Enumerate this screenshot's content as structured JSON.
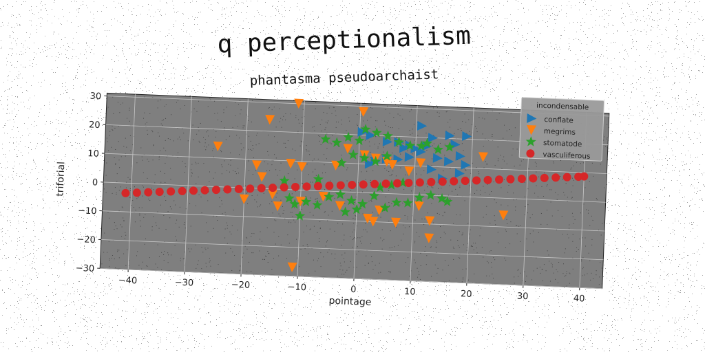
{
  "title": "q perceptionalism",
  "subtitle": "phantasma pseudoarchaist",
  "chart_data": {
    "type": "scatter",
    "title": "phantasma pseudoarchaist",
    "xlabel": "pointage",
    "ylabel": "triforial",
    "xlim": [
      -45,
      44
    ],
    "ylim": [
      -30,
      31
    ],
    "xticks": [
      -40,
      -30,
      -20,
      -10,
      0,
      10,
      20,
      30,
      40
    ],
    "yticks": [
      -30,
      -20,
      -10,
      0,
      10,
      20,
      30
    ],
    "grid": true,
    "legend": {
      "title": "incondensable",
      "position": "top-right"
    },
    "series": [
      {
        "name": "conflate",
        "marker": "triangle-right",
        "color": "#1f77b4",
        "points": [
          [
            0.5,
            21
          ],
          [
            2,
            20
          ],
          [
            5,
            18
          ],
          [
            7,
            18
          ],
          [
            9,
            17
          ],
          [
            11,
            24
          ],
          [
            13,
            20
          ],
          [
            16,
            21
          ],
          [
            19,
            21
          ],
          [
            12,
            17
          ],
          [
            17,
            18
          ],
          [
            18,
            14
          ],
          [
            3,
            11
          ],
          [
            5,
            12
          ],
          [
            9,
            13
          ],
          [
            11,
            15
          ],
          [
            14,
            13
          ],
          [
            16,
            12
          ],
          [
            19,
            11
          ],
          [
            8,
            16
          ],
          [
            2,
            10
          ],
          [
            7,
            12
          ],
          [
            13,
            9
          ],
          [
            15,
            6
          ],
          [
            18,
            8
          ],
          [
            10,
            16
          ]
        ]
      },
      {
        "name": "megrims",
        "marker": "triangle-down",
        "color": "#ff7f0e",
        "points": [
          [
            -11,
            30
          ],
          [
            0.5,
            28
          ],
          [
            -16,
            24
          ],
          [
            -25,
            14
          ],
          [
            -18,
            8
          ],
          [
            -17,
            4
          ],
          [
            -12,
            9
          ],
          [
            -10,
            8
          ],
          [
            -4,
            9
          ],
          [
            -2,
            15
          ],
          [
            1,
            13
          ],
          [
            3,
            12
          ],
          [
            5,
            11
          ],
          [
            6,
            10
          ],
          [
            9,
            8
          ],
          [
            11,
            11
          ],
          [
            22,
            14
          ],
          [
            -20,
            -4
          ],
          [
            -15,
            -2
          ],
          [
            -14,
            -6
          ],
          [
            -11,
            -27
          ],
          [
            -10,
            -4
          ],
          [
            2,
            -9
          ],
          [
            3,
            -10
          ],
          [
            4,
            -6
          ],
          [
            7,
            -10
          ],
          [
            11,
            -4
          ],
          [
            13,
            -9
          ],
          [
            13,
            -15
          ],
          [
            26,
            -6
          ],
          [
            -6,
            -2
          ],
          [
            -3,
            -5
          ]
        ]
      },
      {
        "name": "stomatode",
        "marker": "star",
        "color": "#2ca02c",
        "points": [
          [
            -6,
            18
          ],
          [
            -4,
            17
          ],
          [
            -2,
            19
          ],
          [
            0,
            18
          ],
          [
            1,
            22
          ],
          [
            3,
            21
          ],
          [
            5,
            20
          ],
          [
            7,
            18
          ],
          [
            9,
            17
          ],
          [
            11,
            17
          ],
          [
            12,
            18
          ],
          [
            14,
            16
          ],
          [
            16,
            17
          ],
          [
            -3,
            10
          ],
          [
            -1,
            13
          ],
          [
            1,
            12
          ],
          [
            3,
            11
          ],
          [
            5,
            13
          ],
          [
            -9,
            -4
          ],
          [
            -7,
            -5
          ],
          [
            -5,
            -2
          ],
          [
            -11,
            -5
          ],
          [
            -12,
            -3
          ],
          [
            -10,
            -9
          ],
          [
            -3,
            -1
          ],
          [
            -1,
            -3
          ],
          [
            1,
            -4
          ],
          [
            3,
            -1
          ],
          [
            5,
            -5
          ],
          [
            7,
            -3
          ],
          [
            9,
            -3
          ],
          [
            11,
            -1
          ],
          [
            13,
            0
          ],
          [
            15,
            -1
          ],
          [
            16,
            -2
          ],
          [
            -2,
            -7
          ],
          [
            0,
            -6
          ],
          [
            4,
            2
          ],
          [
            6,
            3
          ],
          [
            8,
            4
          ],
          [
            -13,
            3
          ],
          [
            -7,
            4
          ]
        ]
      },
      {
        "name": "vasculiferous",
        "marker": "circle",
        "color": "#d62728",
        "points": [
          [
            -41,
            -3.5
          ],
          [
            -39,
            -3.2
          ],
          [
            -37,
            -2.9
          ],
          [
            -35,
            -2.6
          ],
          [
            -33,
            -2.3
          ],
          [
            -31,
            -2
          ],
          [
            -29,
            -1.7
          ],
          [
            -27,
            -1.4
          ],
          [
            -25,
            -1.1
          ],
          [
            -23,
            -0.8
          ],
          [
            -21,
            -0.5
          ],
          [
            -19,
            -0.2
          ],
          [
            -17,
            0.1
          ],
          [
            -15,
            0.4
          ],
          [
            -13,
            0.7
          ],
          [
            -11,
            1
          ],
          [
            -9,
            1.3
          ],
          [
            -7,
            1.6
          ],
          [
            -5,
            1.9
          ],
          [
            -3,
            2.2
          ],
          [
            -1,
            2.5
          ],
          [
            1,
            2.8
          ],
          [
            3,
            3.1
          ],
          [
            5,
            3.4
          ],
          [
            7,
            3.7
          ],
          [
            9,
            4
          ],
          [
            11,
            4.3
          ],
          [
            13,
            4.6
          ],
          [
            15,
            4.9
          ],
          [
            17,
            5.2
          ],
          [
            19,
            5.5
          ],
          [
            21,
            5.8
          ],
          [
            23,
            6.1
          ],
          [
            25,
            6.4
          ],
          [
            27,
            6.7
          ],
          [
            29,
            7
          ],
          [
            31,
            7.3
          ],
          [
            33,
            7.6
          ],
          [
            35,
            7.9
          ],
          [
            37,
            8.2
          ],
          [
            39,
            8.5
          ],
          [
            40,
            8.7
          ]
        ]
      }
    ]
  }
}
